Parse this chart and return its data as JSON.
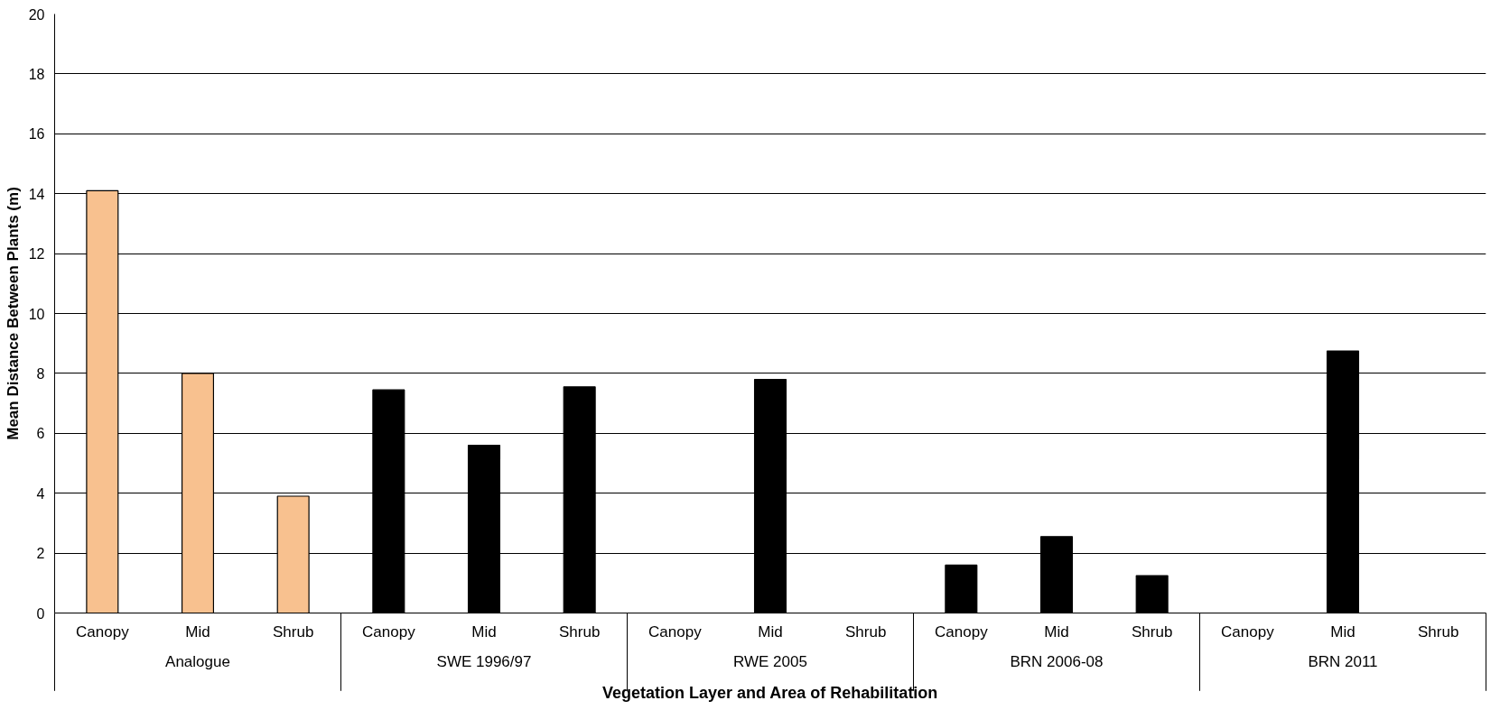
{
  "chart_data": {
    "type": "bar",
    "xlabel": "Vegetation Layer and Area of Rehabilitation",
    "ylabel": "Mean Distance Between Plants (m)",
    "categories": [
      "Canopy",
      "Mid",
      "Shrub",
      "Canopy",
      "Mid",
      "Shrub",
      "Canopy",
      "Mid",
      "Shrub",
      "Canopy",
      "Mid",
      "Shrub",
      "Canopy",
      "Mid",
      "Shrub"
    ],
    "values": [
      14.1,
      8.0,
      3.9,
      7.45,
      5.6,
      7.55,
      null,
      7.8,
      null,
      1.6,
      2.55,
      1.25,
      null,
      8.75,
      null
    ],
    "colors": [
      "#f8c18f",
      "#f8c18f",
      "#f8c18f",
      "#000000",
      "#000000",
      "#000000",
      "#000000",
      "#000000",
      "#000000",
      "#000000",
      "#000000",
      "#000000",
      "#000000",
      "#000000",
      "#000000"
    ],
    "annotations": [
      "Analogue",
      "SWE 1996/97",
      "RWE 2005",
      "BRN 2006-08",
      "BRN 2011"
    ],
    "ylim": [
      0,
      20
    ],
    "yticks": [
      0,
      2,
      4,
      6,
      8,
      10,
      12,
      14,
      16,
      18,
      20
    ],
    "grid": "y"
  }
}
